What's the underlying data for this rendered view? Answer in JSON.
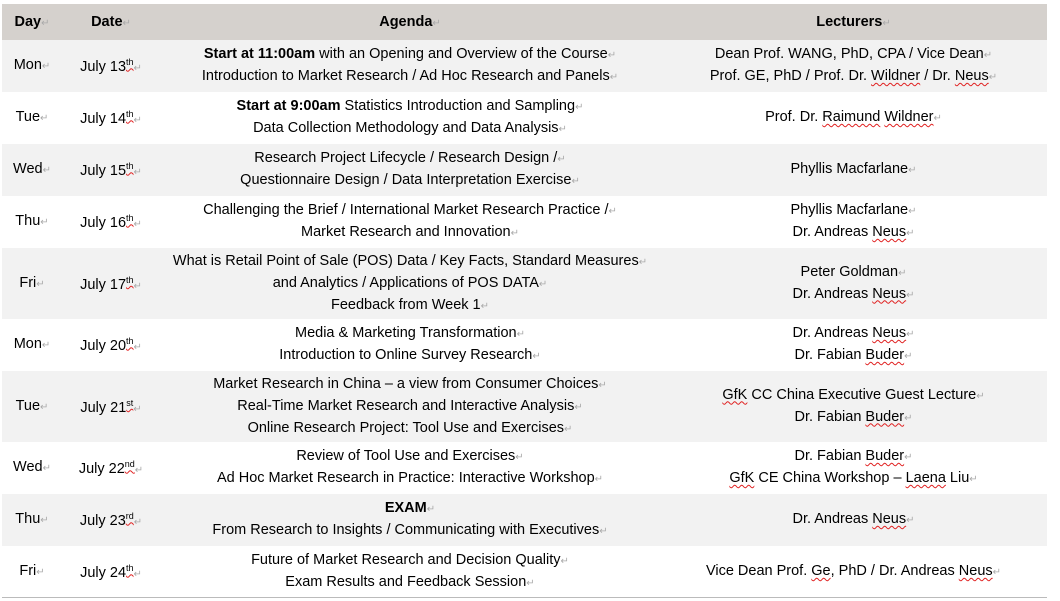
{
  "headers": {
    "day": "Day",
    "date": "Date",
    "agenda": "Agenda",
    "lecturers": "Lecturers"
  },
  "rows": [
    {
      "day": "Mon",
      "date": "July 13",
      "sup": "th",
      "agenda": [
        [
          {
            "t": "Start ",
            "b": true
          },
          {
            "t": "  at 11:00am",
            "b": true
          },
          {
            "t": " with an Opening and Overview of the Course"
          }
        ],
        [
          {
            "t": "Introduction to Market Research / Ad Hoc Research and Panels"
          }
        ]
      ],
      "lecturers": [
        [
          {
            "t": "Dean Prof. WANG, PhD, CPA / Vice Dean"
          }
        ],
        [
          {
            "t": "Prof. GE, PhD / Prof. Dr. "
          },
          {
            "t": "Wildner",
            "sp": true
          },
          {
            "t": " / Dr. "
          },
          {
            "t": "Neus",
            "sp": true
          }
        ]
      ]
    },
    {
      "day": "Tue",
      "date": "July 14",
      "sup": "th",
      "agenda": [
        [
          {
            "t": "Start at 9:00am",
            "b": true
          },
          {
            "t": " Statistics Introduction and Sampling"
          }
        ],
        [
          {
            "t": "Data Collection Methodology and Data Analysis"
          }
        ]
      ],
      "lecturers": [
        [
          {
            "t": "Prof. Dr. "
          },
          {
            "t": "Raimund",
            "sp": true
          },
          {
            "t": " "
          },
          {
            "t": "Wildner",
            "sp": true
          }
        ]
      ]
    },
    {
      "day": "Wed",
      "date": "July 15",
      "sup": "th",
      "agenda": [
        [
          {
            "t": "Research Project Lifecycle / Research Design /"
          }
        ],
        [
          {
            "t": "Questionnaire Design / Data Interpretation  Exercise"
          }
        ]
      ],
      "lecturers": [
        [
          {
            "t": "Phyllis Macfarlane"
          }
        ]
      ]
    },
    {
      "day": "Thu",
      "date": "July 16",
      "sup": "th",
      "agenda": [
        [
          {
            "t": "Challenging the Brief / International Market Research Practice /"
          }
        ],
        [
          {
            "t": "Market Research and Innovation"
          }
        ]
      ],
      "lecturers": [
        [
          {
            "t": "Phyllis Macfarlane"
          }
        ],
        [
          {
            "t": "Dr. Andreas "
          },
          {
            "t": "Neus",
            "sp": true
          }
        ]
      ]
    },
    {
      "day": "Fri",
      "date": "July 17",
      "sup": "th",
      "agenda": [
        [
          {
            "t": "What is Retail Point of Sale (POS) Data / Key Facts, Standard Measures"
          }
        ],
        [
          {
            "t": "and Analytics /    Applications of POS DATA"
          }
        ],
        [
          {
            "t": "Feedback from Week 1"
          }
        ]
      ],
      "lecturers": [
        [
          {
            "t": "Peter Goldman"
          }
        ],
        [
          {
            "t": "Dr. Andreas "
          },
          {
            "t": "Neus",
            "sp": true
          }
        ]
      ]
    },
    {
      "day": "Mon",
      "date": "July 20",
      "sup": "th",
      "agenda": [
        [
          {
            "t": "Media & Marketing Transformation"
          }
        ],
        [
          {
            "t": "Introduction to Online Survey Research"
          }
        ]
      ],
      "lecturers": [
        [
          {
            "t": "Dr. Andreas "
          },
          {
            "t": "Neus",
            "sp": true
          }
        ],
        [
          {
            "t": "Dr. Fabian "
          },
          {
            "t": "Buder",
            "sp": true
          }
        ]
      ]
    },
    {
      "day": "Tue",
      "date": "July 21",
      "sup": "st",
      "agenda": [
        [
          {
            "t": "Market Research in China  –  a view from Consumer Choices"
          }
        ],
        [
          {
            "t": "Real-Time Market Research and Interactive Analysis"
          }
        ],
        [
          {
            "t": "Online Research Project: Tool Use and Exercises"
          }
        ]
      ],
      "lecturers": [
        [
          {
            "t": "GfK",
            "sp": true
          },
          {
            "t": " CC China Executive Guest Lecture"
          }
        ],
        [
          {
            "t": "Dr. Fabian "
          },
          {
            "t": "Buder",
            "sp": true
          }
        ]
      ]
    },
    {
      "day": "Wed",
      "date": "July 22",
      "sup": "nd",
      "agenda": [
        [
          {
            "t": "Review of Tool Use and Exercises"
          }
        ],
        [
          {
            "t": "Ad Hoc Market Research in Practice: Interactive Workshop"
          }
        ]
      ],
      "lecturers": [
        [
          {
            "t": "Dr. Fabian "
          },
          {
            "t": "Buder",
            "sp": true
          }
        ],
        [
          {
            "t": "GfK",
            "sp": true
          },
          {
            "t": " CE China Workshop  –  "
          },
          {
            "t": "Laena",
            "sp": true
          },
          {
            "t": " Liu"
          }
        ]
      ]
    },
    {
      "day": "Thu",
      "date": "July 23",
      "sup": "rd",
      "agenda": [
        [
          {
            "t": "EXAM",
            "b": true
          }
        ],
        [
          {
            "t": "From Research to Insights / Communicating with Executives"
          }
        ]
      ],
      "lecturers": [
        [
          {
            "t": "Dr. Andreas "
          },
          {
            "t": "Neus",
            "sp": true
          }
        ]
      ]
    },
    {
      "day": "Fri",
      "date": "July 24",
      "sup": "th",
      "agenda": [
        [
          {
            "t": "Future of Market Research and Decision Quality"
          }
        ],
        [
          {
            "t": "Exam Results and Feedback Session"
          }
        ]
      ],
      "lecturers": [
        [
          {
            "t": "Vice Dean Prof. "
          },
          {
            "t": "Ge",
            "sp": true
          },
          {
            "t": ", PhD / Dr. Andreas "
          },
          {
            "t": "Neus",
            "sp": true
          }
        ]
      ]
    }
  ]
}
